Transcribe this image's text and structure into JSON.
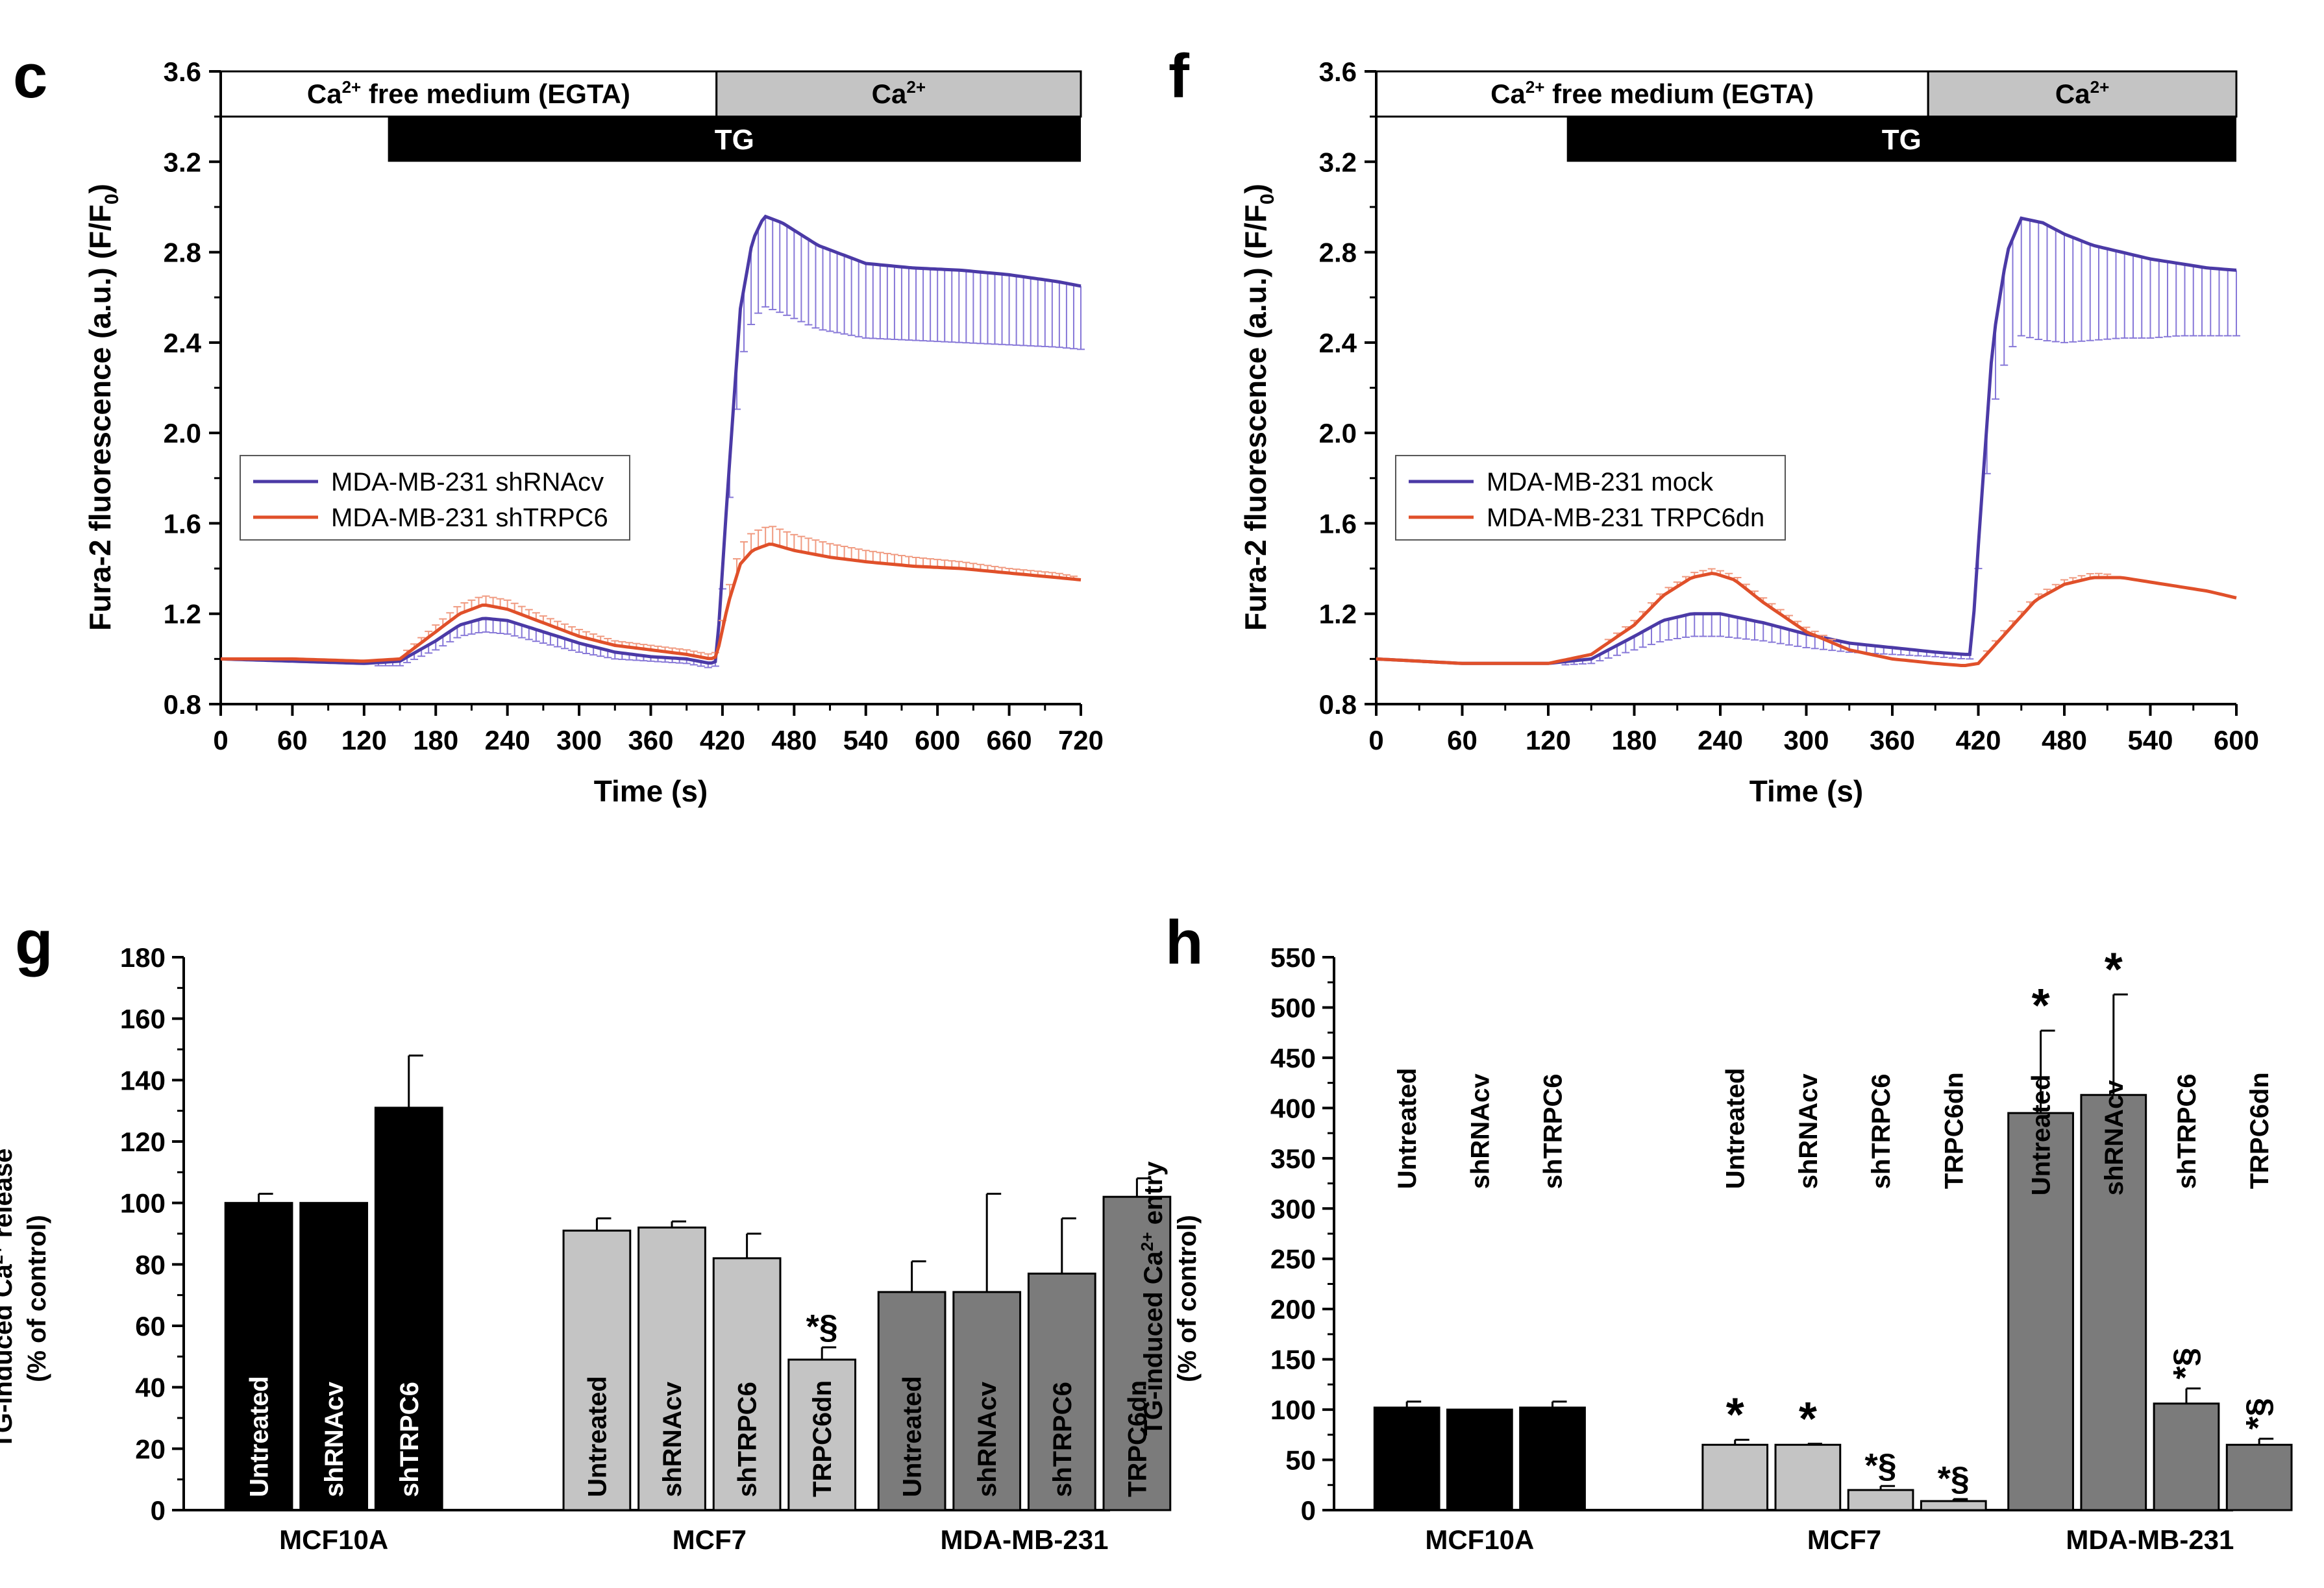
{
  "colors": {
    "blue": "#4b3aa6",
    "blue_err": "#8778d8",
    "red": "#e0502a",
    "red_err": "#f09a80",
    "black": "#000000",
    "light_gray": "#c4c4c4",
    "dark_gray": "#7b7b7b",
    "ca_bar": "#c4c4c4"
  },
  "chart_data": [
    {
      "id": "c",
      "type": "line",
      "panel_label": "c",
      "xlabel": "Time (s)",
      "ylabel": "Fura-2 fluorescence (a.u.) (F/F",
      "ylabel_sub": "0",
      "ylabel_end": ")",
      "xlim": [
        0,
        720
      ],
      "ylim": [
        0.8,
        3.6
      ],
      "xticks": [
        0,
        60,
        120,
        180,
        240,
        300,
        360,
        420,
        480,
        540,
        600,
        660,
        720
      ],
      "xtick_labels": [
        "0",
        "60",
        "120",
        "180",
        "240",
        "300",
        "360",
        "420",
        "480",
        "540",
        "600",
        "660",
        "720"
      ],
      "yticks": [
        0.8,
        1.2,
        1.6,
        2.0,
        2.4,
        2.8,
        3.2,
        3.6
      ],
      "ytick_labels": [
        "0.8",
        "1.2",
        "1.6",
        "2.0",
        "2.4",
        "2.8",
        "3.2",
        "3.6"
      ],
      "protocol": {
        "ca_free_label": "Ca",
        "ca_free_sup": "2+",
        "ca_free_rest": " free medium (EGTA)",
        "ca_label": "Ca",
        "ca_sup": "2+",
        "tg_label": "TG",
        "ca_free_range": [
          0,
          415
        ],
        "ca_range": [
          415,
          720
        ],
        "tg_range": [
          140,
          720
        ]
      },
      "legend": [
        "MDA-MB-231 shRNAcv",
        "MDA-MB-231 shTRPC6"
      ],
      "series": [
        {
          "name": "MDA-MB-231 shRNAcv",
          "color_key": "blue",
          "x": [
            0,
            60,
            120,
            150,
            180,
            200,
            220,
            240,
            270,
            300,
            330,
            360,
            390,
            410,
            415,
            425,
            435,
            445,
            455,
            470,
            500,
            540,
            580,
            620,
            660,
            700,
            720
          ],
          "y": [
            1.0,
            0.99,
            0.98,
            0.99,
            1.08,
            1.15,
            1.18,
            1.17,
            1.12,
            1.07,
            1.03,
            1.01,
            1.0,
            0.98,
            0.99,
            1.8,
            2.55,
            2.85,
            2.96,
            2.93,
            2.83,
            2.75,
            2.73,
            2.72,
            2.7,
            2.67,
            2.65
          ],
          "err": [
            0.01,
            0.01,
            0.01,
            0.02,
            0.04,
            0.05,
            0.06,
            0.06,
            0.05,
            0.04,
            0.03,
            0.02,
            0.02,
            0.02,
            0.02,
            0.15,
            0.25,
            0.35,
            0.4,
            0.4,
            0.37,
            0.33,
            0.32,
            0.32,
            0.31,
            0.29,
            0.28
          ]
        },
        {
          "name": "MDA-MB-231 shTRPC6",
          "color_key": "red",
          "x": [
            0,
            60,
            120,
            150,
            180,
            200,
            220,
            240,
            270,
            300,
            330,
            360,
            390,
            410,
            415,
            425,
            435,
            445,
            460,
            480,
            510,
            540,
            580,
            620,
            660,
            700,
            720
          ],
          "y": [
            1.0,
            1.0,
            0.99,
            1.0,
            1.12,
            1.2,
            1.24,
            1.22,
            1.16,
            1.1,
            1.06,
            1.04,
            1.02,
            1.0,
            1.01,
            1.25,
            1.42,
            1.48,
            1.51,
            1.48,
            1.45,
            1.43,
            1.41,
            1.4,
            1.38,
            1.36,
            1.35
          ],
          "err": [
            0.01,
            0.01,
            0.01,
            0.01,
            0.03,
            0.04,
            0.04,
            0.04,
            0.03,
            0.03,
            0.02,
            0.02,
            0.02,
            0.02,
            0.02,
            0.06,
            0.08,
            0.08,
            0.08,
            0.07,
            0.06,
            0.05,
            0.04,
            0.03,
            0.02,
            0.02,
            0.01
          ]
        }
      ]
    },
    {
      "id": "f",
      "type": "line",
      "panel_label": "f",
      "xlabel": "Time (s)",
      "ylabel": "Fura-2 fluorescence (a.u.) (F/F",
      "ylabel_sub": "0",
      "ylabel_end": ")",
      "xlim": [
        0,
        600
      ],
      "ylim": [
        0.8,
        3.6
      ],
      "xticks": [
        0,
        60,
        120,
        180,
        240,
        300,
        360,
        420,
        480,
        540,
        600
      ],
      "xtick_labels": [
        "0",
        "60",
        "120",
        "180",
        "240",
        "300",
        "360",
        "420",
        "480",
        "540",
        "600"
      ],
      "yticks": [
        0.8,
        1.2,
        1.6,
        2.0,
        2.4,
        2.8,
        3.2,
        3.6
      ],
      "ytick_labels": [
        "0.8",
        "1.2",
        "1.6",
        "2.0",
        "2.4",
        "2.8",
        "3.2",
        "3.6"
      ],
      "protocol": {
        "ca_free_label": "Ca",
        "ca_free_sup": "2+",
        "ca_free_rest": " free medium (EGTA)",
        "ca_label": "Ca",
        "ca_sup": "2+",
        "tg_label": "TG",
        "ca_free_range": [
          0,
          385
        ],
        "ca_range": [
          385,
          600
        ],
        "tg_range": [
          133,
          600
        ]
      },
      "legend": [
        "MDA-MB-231 mock",
        "MDA-MB-231 TRPC6dn"
      ],
      "series": [
        {
          "name": "MDA-MB-231 mock",
          "color_key": "blue",
          "x": [
            0,
            60,
            120,
            150,
            180,
            200,
            220,
            240,
            270,
            300,
            330,
            360,
            390,
            410,
            415,
            420,
            430,
            440,
            450,
            465,
            480,
            500,
            520,
            540,
            560,
            580,
            600
          ],
          "y": [
            1.0,
            0.98,
            0.98,
            1.0,
            1.1,
            1.17,
            1.2,
            1.2,
            1.16,
            1.11,
            1.07,
            1.05,
            1.03,
            1.02,
            1.02,
            1.5,
            2.4,
            2.8,
            2.95,
            2.93,
            2.88,
            2.83,
            2.8,
            2.77,
            2.75,
            2.73,
            2.72
          ],
          "err": [
            0.01,
            0.01,
            0.01,
            0.02,
            0.06,
            0.09,
            0.1,
            0.1,
            0.08,
            0.06,
            0.04,
            0.03,
            0.02,
            0.02,
            0.02,
            0.1,
            0.3,
            0.45,
            0.52,
            0.52,
            0.48,
            0.42,
            0.38,
            0.35,
            0.32,
            0.3,
            0.29
          ]
        },
        {
          "name": "MDA-MB-231 TRPC6dn",
          "color_key": "red",
          "x": [
            0,
            60,
            120,
            150,
            180,
            200,
            220,
            235,
            250,
            270,
            300,
            330,
            360,
            390,
            410,
            420,
            440,
            460,
            480,
            500,
            520,
            540,
            560,
            580,
            600
          ],
          "y": [
            1.0,
            0.98,
            0.98,
            1.02,
            1.15,
            1.28,
            1.36,
            1.38,
            1.35,
            1.25,
            1.12,
            1.04,
            1.0,
            0.98,
            0.97,
            0.98,
            1.12,
            1.26,
            1.33,
            1.36,
            1.36,
            1.34,
            1.32,
            1.3,
            1.27
          ],
          "err": [
            0.01,
            0.01,
            0.01,
            0.01,
            0.02,
            0.02,
            0.02,
            0.02,
            0.02,
            0.02,
            0.02,
            0.01,
            0.01,
            0.01,
            0.01,
            0.01,
            0.02,
            0.02,
            0.02,
            0.02,
            0.01,
            0.01,
            0.01,
            0.01,
            0.01
          ]
        }
      ]
    },
    {
      "id": "g",
      "type": "bar",
      "panel_label": "g",
      "ylabel_line1": "TG-induced Ca",
      "ylabel_sup": "2+",
      "ylabel_line1_end": " release",
      "ylabel_line2": "(% of control)",
      "ylim": [
        0,
        180
      ],
      "yticks": [
        0,
        20,
        40,
        60,
        80,
        100,
        120,
        140,
        160,
        180
      ],
      "ytick_labels": [
        "0",
        "20",
        "40",
        "60",
        "80",
        "100",
        "120",
        "140",
        "160",
        "180"
      ],
      "groups": [
        {
          "name": "MCF10A",
          "color_key": "black",
          "label_color": "#ffffff",
          "bars": [
            {
              "label": "Untreated",
              "value": 100,
              "err": 3,
              "sig": ""
            },
            {
              "label": "shRNAcv",
              "value": 100,
              "err": 0,
              "sig": ""
            },
            {
              "label": "shTRPC6",
              "value": 131,
              "err": 17,
              "sig": ""
            }
          ]
        },
        {
          "name": "MCF7",
          "color_key": "light_gray",
          "label_color": "#000000",
          "bars": [
            {
              "label": "Untreated",
              "value": 91,
              "err": 4,
              "sig": ""
            },
            {
              "label": "shRNAcv",
              "value": 92,
              "err": 2,
              "sig": ""
            },
            {
              "label": "shTRPC6",
              "value": 82,
              "err": 8,
              "sig": ""
            },
            {
              "label": "TRPC6dn",
              "value": 49,
              "err": 4,
              "sig": "*§"
            }
          ]
        },
        {
          "name": "MDA-MB-231",
          "color_key": "dark_gray",
          "label_color": "#000000",
          "bars": [
            {
              "label": "Untreated",
              "value": 71,
              "err": 10,
              "sig": ""
            },
            {
              "label": "shRNAcv",
              "value": 71,
              "err": 32,
              "sig": ""
            },
            {
              "label": "shTRPC6",
              "value": 77,
              "err": 18,
              "sig": ""
            },
            {
              "label": "TRPC6dn",
              "value": 102,
              "err": 6,
              "sig": ""
            }
          ]
        }
      ]
    },
    {
      "id": "h",
      "type": "bar",
      "panel_label": "h",
      "ylabel_line1": "TG-induced Ca",
      "ylabel_sup": "2+",
      "ylabel_line1_end": " entry",
      "ylabel_line2": "(% of control)",
      "ylim": [
        0,
        550
      ],
      "yticks": [
        0,
        50,
        100,
        150,
        200,
        250,
        300,
        350,
        400,
        450,
        500,
        550
      ],
      "ytick_labels": [
        "0",
        "50",
        "100",
        "150",
        "200",
        "250",
        "300",
        "350",
        "400",
        "450",
        "500",
        "550"
      ],
      "groups": [
        {
          "name": "MCF10A",
          "color_key": "black",
          "label_color": "#000000",
          "bars": [
            {
              "label": "Untreated",
              "value": 102,
              "err": 6,
              "sig": ""
            },
            {
              "label": "shRNAcv",
              "value": 100,
              "err": 0,
              "sig": ""
            },
            {
              "label": "shTRPC6",
              "value": 102,
              "err": 6,
              "sig": ""
            }
          ]
        },
        {
          "name": "MCF7",
          "color_key": "light_gray",
          "label_color": "#000000",
          "bars": [
            {
              "label": "Untreated",
              "value": 65,
              "err": 5,
              "sig": "*"
            },
            {
              "label": "shRNAcv",
              "value": 65,
              "err": 1,
              "sig": "*"
            },
            {
              "label": "shTRPC6",
              "value": 20,
              "err": 4,
              "sig": "*§"
            },
            {
              "label": "TRPC6dn",
              "value": 9,
              "err": 2,
              "sig": "*§"
            }
          ]
        },
        {
          "name": "MDA-MB-231",
          "color_key": "dark_gray",
          "label_color": "#000000",
          "bars": [
            {
              "label": "Untreated",
              "value": 395,
              "err": 82,
              "sig": "*"
            },
            {
              "label": "shRNAcv",
              "value": 413,
              "err": 100,
              "sig": "*"
            },
            {
              "label": "shTRPC6",
              "value": 106,
              "err": 15,
              "sig": "*§"
            },
            {
              "label": "TRPC6dn",
              "value": 65,
              "err": 6,
              "sig": "*§"
            }
          ]
        }
      ]
    }
  ]
}
